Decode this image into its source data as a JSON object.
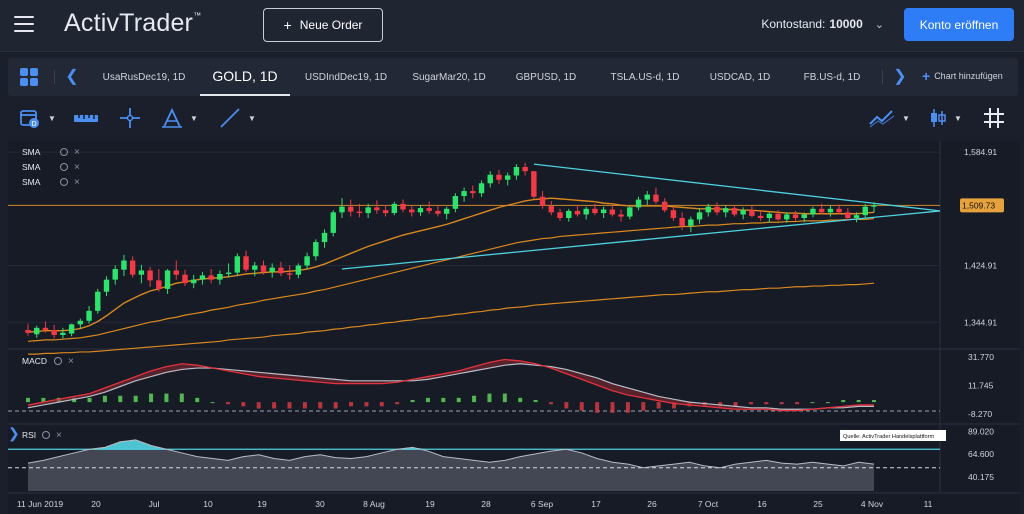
{
  "app": {
    "logo": "ActivTrader",
    "logo_tm": "™",
    "new_order_label": "Neue Order",
    "account_label": "Kontostand:",
    "account_value": "10000",
    "open_account_label": "Konto eröffnen",
    "accent": "#2e7cf6"
  },
  "tabs": {
    "items": [
      {
        "label": "UsaRusDec19, 1D",
        "active": false
      },
      {
        "label": "GOLD, 1D",
        "active": true
      },
      {
        "label": "USDIndDec19, 1D",
        "active": false
      },
      {
        "label": "SugarMar20, 1D",
        "active": false
      },
      {
        "label": "GBPUSD, 1D",
        "active": false
      },
      {
        "label": "TSLA.US-d, 1D",
        "active": false
      },
      {
        "label": "USDCAD, 1D",
        "active": false
      },
      {
        "label": "FB.US-d, 1D",
        "active": false
      }
    ],
    "add_chart_label": "Chart hinzufügen"
  },
  "toolbar": {
    "icons": [
      "calendar-icon",
      "ruler-icon",
      "crosshair-icon",
      "fibonacci-icon",
      "trendline-icon",
      "indicators-icon",
      "candlestick-icon",
      "grid-hash-icon"
    ]
  },
  "chart": {
    "legend": [
      "SMA",
      "SMA",
      "SMA"
    ],
    "price_labels": [
      "1,584.91",
      "1,509.73",
      "1,424.91",
      "1,344.91"
    ],
    "current_price": "1,509.73",
    "macd_label": "MACD",
    "macd_labels": [
      "31.770",
      "11.745",
      "-8.270"
    ],
    "rsi_label": "RSI",
    "rsi_labels": [
      "89.020",
      "64.600",
      "40.175"
    ],
    "source_note": "Quelle: ActivTrader Handelsplattform",
    "x_labels": [
      "11 Jun 2019",
      "20",
      "Jul",
      "10",
      "19",
      "30",
      "8 Aug",
      "19",
      "28",
      "6 Sep",
      "17",
      "26",
      "7 Oct",
      "16",
      "25",
      "4 Nov",
      "11"
    ],
    "colors": {
      "up": "#2ee36b",
      "down": "#f23a46",
      "sma": "#d9881f",
      "triangle": "#4fd1e0",
      "rsi": "#4fd1e0"
    }
  },
  "chart_data": {
    "type": "candlestick",
    "symbol": "GOLD, 1D",
    "price_ticks": [
      1584.91,
      1509.73,
      1424.91,
      1344.91
    ],
    "current_price": 1509.73,
    "candles": [
      {
        "o": 1334,
        "h": 1343,
        "l": 1326,
        "c": 1330
      },
      {
        "o": 1328,
        "h": 1340,
        "l": 1323,
        "c": 1337
      },
      {
        "o": 1337,
        "h": 1346,
        "l": 1330,
        "c": 1334
      },
      {
        "o": 1334,
        "h": 1341,
        "l": 1322,
        "c": 1327
      },
      {
        "o": 1327,
        "h": 1337,
        "l": 1322,
        "c": 1330
      },
      {
        "o": 1329,
        "h": 1343,
        "l": 1325,
        "c": 1342
      },
      {
        "o": 1342,
        "h": 1350,
        "l": 1336,
        "c": 1347
      },
      {
        "o": 1347,
        "h": 1368,
        "l": 1343,
        "c": 1361
      },
      {
        "o": 1361,
        "h": 1392,
        "l": 1357,
        "c": 1388
      },
      {
        "o": 1388,
        "h": 1410,
        "l": 1382,
        "c": 1405
      },
      {
        "o": 1405,
        "h": 1425,
        "l": 1398,
        "c": 1420
      },
      {
        "o": 1419,
        "h": 1440,
        "l": 1410,
        "c": 1432
      },
      {
        "o": 1432,
        "h": 1438,
        "l": 1408,
        "c": 1412
      },
      {
        "o": 1412,
        "h": 1426,
        "l": 1400,
        "c": 1418
      },
      {
        "o": 1418,
        "h": 1423,
        "l": 1395,
        "c": 1404
      },
      {
        "o": 1404,
        "h": 1420,
        "l": 1388,
        "c": 1392
      },
      {
        "o": 1392,
        "h": 1420,
        "l": 1385,
        "c": 1418
      },
      {
        "o": 1418,
        "h": 1432,
        "l": 1405,
        "c": 1412
      },
      {
        "o": 1412,
        "h": 1419,
        "l": 1396,
        "c": 1400
      },
      {
        "o": 1400,
        "h": 1412,
        "l": 1393,
        "c": 1405
      },
      {
        "o": 1405,
        "h": 1416,
        "l": 1398,
        "c": 1411
      },
      {
        "o": 1411,
        "h": 1420,
        "l": 1400,
        "c": 1405
      },
      {
        "o": 1405,
        "h": 1418,
        "l": 1398,
        "c": 1413
      },
      {
        "o": 1413,
        "h": 1428,
        "l": 1408,
        "c": 1415
      },
      {
        "o": 1415,
        "h": 1442,
        "l": 1410,
        "c": 1438
      },
      {
        "o": 1438,
        "h": 1446,
        "l": 1416,
        "c": 1419
      },
      {
        "o": 1419,
        "h": 1430,
        "l": 1410,
        "c": 1425
      },
      {
        "o": 1425,
        "h": 1432,
        "l": 1412,
        "c": 1416
      },
      {
        "o": 1416,
        "h": 1428,
        "l": 1408,
        "c": 1422
      },
      {
        "o": 1422,
        "h": 1430,
        "l": 1410,
        "c": 1414
      },
      {
        "o": 1414,
        "h": 1425,
        "l": 1405,
        "c": 1412
      },
      {
        "o": 1412,
        "h": 1428,
        "l": 1407,
        "c": 1425
      },
      {
        "o": 1425,
        "h": 1443,
        "l": 1420,
        "c": 1438
      },
      {
        "o": 1438,
        "h": 1462,
        "l": 1432,
        "c": 1458
      },
      {
        "o": 1458,
        "h": 1476,
        "l": 1450,
        "c": 1471
      },
      {
        "o": 1471,
        "h": 1503,
        "l": 1466,
        "c": 1500
      },
      {
        "o": 1500,
        "h": 1520,
        "l": 1492,
        "c": 1508
      },
      {
        "o": 1508,
        "h": 1518,
        "l": 1494,
        "c": 1501
      },
      {
        "o": 1501,
        "h": 1512,
        "l": 1493,
        "c": 1499
      },
      {
        "o": 1499,
        "h": 1512,
        "l": 1492,
        "c": 1507
      },
      {
        "o": 1507,
        "h": 1517,
        "l": 1498,
        "c": 1503
      },
      {
        "o": 1503,
        "h": 1510,
        "l": 1494,
        "c": 1499
      },
      {
        "o": 1499,
        "h": 1515,
        "l": 1496,
        "c": 1512
      },
      {
        "o": 1512,
        "h": 1518,
        "l": 1500,
        "c": 1504
      },
      {
        "o": 1504,
        "h": 1510,
        "l": 1494,
        "c": 1500
      },
      {
        "o": 1500,
        "h": 1510,
        "l": 1495,
        "c": 1506
      },
      {
        "o": 1506,
        "h": 1515,
        "l": 1498,
        "c": 1502
      },
      {
        "o": 1502,
        "h": 1510,
        "l": 1494,
        "c": 1498
      },
      {
        "o": 1498,
        "h": 1508,
        "l": 1490,
        "c": 1505
      },
      {
        "o": 1505,
        "h": 1527,
        "l": 1500,
        "c": 1523
      },
      {
        "o": 1523,
        "h": 1535,
        "l": 1515,
        "c": 1530
      },
      {
        "o": 1530,
        "h": 1538,
        "l": 1520,
        "c": 1527
      },
      {
        "o": 1527,
        "h": 1545,
        "l": 1522,
        "c": 1541
      },
      {
        "o": 1541,
        "h": 1558,
        "l": 1535,
        "c": 1553
      },
      {
        "o": 1553,
        "h": 1560,
        "l": 1540,
        "c": 1546
      },
      {
        "o": 1546,
        "h": 1556,
        "l": 1538,
        "c": 1552
      },
      {
        "o": 1552,
        "h": 1568,
        "l": 1546,
        "c": 1564
      },
      {
        "o": 1564,
        "h": 1570,
        "l": 1552,
        "c": 1558
      },
      {
        "o": 1558,
        "h": 1558,
        "l": 1518,
        "c": 1522
      },
      {
        "o": 1522,
        "h": 1530,
        "l": 1505,
        "c": 1509
      },
      {
        "o": 1509,
        "h": 1516,
        "l": 1496,
        "c": 1500
      },
      {
        "o": 1500,
        "h": 1505,
        "l": 1488,
        "c": 1492
      },
      {
        "o": 1492,
        "h": 1505,
        "l": 1487,
        "c": 1502
      },
      {
        "o": 1502,
        "h": 1510,
        "l": 1494,
        "c": 1497
      },
      {
        "o": 1497,
        "h": 1508,
        "l": 1490,
        "c": 1505
      },
      {
        "o": 1505,
        "h": 1512,
        "l": 1496,
        "c": 1499
      },
      {
        "o": 1499,
        "h": 1508,
        "l": 1492,
        "c": 1504
      },
      {
        "o": 1504,
        "h": 1510,
        "l": 1494,
        "c": 1497
      },
      {
        "o": 1497,
        "h": 1504,
        "l": 1487,
        "c": 1494
      },
      {
        "o": 1494,
        "h": 1510,
        "l": 1490,
        "c": 1507
      },
      {
        "o": 1507,
        "h": 1522,
        "l": 1503,
        "c": 1518
      },
      {
        "o": 1518,
        "h": 1530,
        "l": 1510,
        "c": 1525
      },
      {
        "o": 1525,
        "h": 1535,
        "l": 1512,
        "c": 1515
      },
      {
        "o": 1515,
        "h": 1520,
        "l": 1500,
        "c": 1503
      },
      {
        "o": 1503,
        "h": 1508,
        "l": 1488,
        "c": 1492
      },
      {
        "o": 1492,
        "h": 1500,
        "l": 1475,
        "c": 1481
      },
      {
        "o": 1481,
        "h": 1494,
        "l": 1472,
        "c": 1490
      },
      {
        "o": 1490,
        "h": 1506,
        "l": 1484,
        "c": 1500
      },
      {
        "o": 1500,
        "h": 1512,
        "l": 1494,
        "c": 1508
      },
      {
        "o": 1508,
        "h": 1514,
        "l": 1496,
        "c": 1500
      },
      {
        "o": 1500,
        "h": 1510,
        "l": 1493,
        "c": 1506
      },
      {
        "o": 1506,
        "h": 1510,
        "l": 1494,
        "c": 1497
      },
      {
        "o": 1497,
        "h": 1507,
        "l": 1490,
        "c": 1503
      },
      {
        "o": 1503,
        "h": 1509,
        "l": 1493,
        "c": 1495
      },
      {
        "o": 1495,
        "h": 1502,
        "l": 1488,
        "c": 1492
      },
      {
        "o": 1492,
        "h": 1500,
        "l": 1486,
        "c": 1498
      },
      {
        "o": 1498,
        "h": 1503,
        "l": 1488,
        "c": 1490
      },
      {
        "o": 1490,
        "h": 1500,
        "l": 1485,
        "c": 1497
      },
      {
        "o": 1497,
        "h": 1502,
        "l": 1488,
        "c": 1492
      },
      {
        "o": 1492,
        "h": 1500,
        "l": 1486,
        "c": 1497
      },
      {
        "o": 1497,
        "h": 1508,
        "l": 1493,
        "c": 1505
      },
      {
        "o": 1505,
        "h": 1512,
        "l": 1497,
        "c": 1500
      },
      {
        "o": 1500,
        "h": 1510,
        "l": 1494,
        "c": 1505
      },
      {
        "o": 1505,
        "h": 1511,
        "l": 1497,
        "c": 1500
      },
      {
        "o": 1500,
        "h": 1506,
        "l": 1488,
        "c": 1492
      },
      {
        "o": 1492,
        "h": 1500,
        "l": 1486,
        "c": 1496
      },
      {
        "o": 1496,
        "h": 1512,
        "l": 1491,
        "c": 1508
      },
      {
        "o": 1508,
        "h": 1514,
        "l": 1500,
        "c": 1510
      }
    ],
    "sma_fast_label": "SMA",
    "sma_fast": [
      1331,
      1332,
      1333,
      1333,
      1333,
      1334,
      1336,
      1340,
      1346,
      1354,
      1363,
      1372,
      1378,
      1384,
      1389,
      1392,
      1396,
      1400,
      1402,
      1404,
      1406,
      1407,
      1408,
      1409,
      1411,
      1413,
      1414,
      1415,
      1416,
      1416,
      1417,
      1418,
      1420,
      1423,
      1427,
      1432,
      1437,
      1442,
      1447,
      1452,
      1456,
      1460,
      1464,
      1468,
      1471,
      1474,
      1477,
      1480,
      1483,
      1487,
      1491,
      1495,
      1499,
      1503,
      1507,
      1510,
      1513,
      1516,
      1518,
      1519,
      1520,
      1519,
      1518,
      1517,
      1516,
      1515,
      1513,
      1512,
      1510,
      1509,
      1509,
      1509,
      1509,
      1509,
      1508,
      1507,
      1506,
      1505,
      1505,
      1505,
      1504,
      1504,
      1503,
      1503,
      1502,
      1501,
      1500,
      1499,
      1499,
      1498,
      1498,
      1498,
      1498,
      1498,
      1498,
      1498,
      1499,
      1500
    ],
    "sma_mid_label": "SMA",
    "sma_mid": [
      1318,
      1319,
      1320,
      1320,
      1321,
      1322,
      1323,
      1325,
      1327,
      1330,
      1333,
      1336,
      1339,
      1342,
      1345,
      1347,
      1350,
      1352,
      1355,
      1357,
      1359,
      1362,
      1364,
      1366,
      1369,
      1371,
      1373,
      1376,
      1378,
      1380,
      1382,
      1384,
      1386,
      1389,
      1391,
      1394,
      1397,
      1400,
      1403,
      1406,
      1409,
      1412,
      1415,
      1418,
      1421,
      1424,
      1427,
      1430,
      1433,
      1436,
      1439,
      1442,
      1445,
      1448,
      1451,
      1454,
      1457,
      1459,
      1461,
      1463,
      1464,
      1466,
      1467,
      1468,
      1469,
      1470,
      1471,
      1472,
      1473,
      1474,
      1475,
      1476,
      1477,
      1478,
      1479,
      1480,
      1480,
      1481,
      1482,
      1482,
      1483,
      1484,
      1484,
      1485,
      1485,
      1486,
      1486,
      1487,
      1487,
      1488,
      1488,
      1488,
      1489,
      1489,
      1490,
      1490,
      1490,
      1491
    ],
    "sma_slow_label": "SMA",
    "sma_slow": [
      1300,
      1300,
      1301,
      1301,
      1302,
      1302,
      1303,
      1303,
      1304,
      1305,
      1306,
      1307,
      1308,
      1309,
      1310,
      1311,
      1312,
      1313,
      1314,
      1315,
      1316,
      1317,
      1318,
      1320,
      1321,
      1322,
      1323,
      1324,
      1326,
      1327,
      1328,
      1329,
      1331,
      1332,
      1333,
      1335,
      1336,
      1338,
      1339,
      1341,
      1342,
      1344,
      1345,
      1347,
      1348,
      1350,
      1351,
      1353,
      1354,
      1356,
      1357,
      1359,
      1360,
      1362,
      1363,
      1365,
      1366,
      1367,
      1369,
      1370,
      1371,
      1372,
      1373,
      1374,
      1375,
      1376,
      1377,
      1378,
      1379,
      1380,
      1381,
      1382,
      1383,
      1384,
      1384,
      1385,
      1386,
      1387,
      1388,
      1388,
      1389,
      1390,
      1391,
      1391,
      1392,
      1393,
      1393,
      1394,
      1395,
      1395,
      1396,
      1396,
      1397,
      1397,
      1398,
      1398,
      1399,
      1400
    ],
    "flat_line": 1509.73,
    "triangle_upper": [
      {
        "i": 58,
        "p": 1568
      },
      {
        "i": 107,
        "p": 1502
      }
    ],
    "triangle_lower": [
      {
        "i": 36,
        "p": 1420
      },
      {
        "i": 107,
        "p": 1502
      }
    ],
    "macd": {
      "ticks": [
        31.77,
        11.745,
        -8.27
      ],
      "zero_line": 0,
      "macd_line": [
        -2,
        0,
        2,
        4,
        6,
        10,
        14,
        18,
        22,
        25,
        27,
        26,
        24,
        22,
        20,
        18,
        17,
        16,
        15,
        14,
        13,
        13,
        13,
        13,
        14,
        16,
        18,
        20,
        22,
        25,
        28,
        30,
        29,
        27,
        24,
        20,
        16,
        12,
        8,
        5,
        3,
        1,
        -1,
        -2,
        -3,
        -4,
        -5,
        -5,
        -5,
        -6,
        -6,
        -5,
        -4,
        -3,
        -2,
        -2
      ],
      "signal_line": [
        -4,
        -2,
        0,
        2,
        4,
        7,
        11,
        15,
        18,
        21,
        23,
        24,
        24,
        23,
        22,
        21,
        20,
        19,
        18,
        17,
        16,
        15,
        15,
        15,
        15,
        15,
        16,
        18,
        20,
        22,
        24,
        26,
        27,
        26,
        25,
        23,
        20,
        17,
        13,
        10,
        7,
        4,
        2,
        0,
        -1,
        -2,
        -3,
        -4,
        -4,
        -5,
        -5,
        -5,
        -4,
        -4,
        -3,
        -3
      ]
    },
    "rsi": {
      "ticks": [
        89.02,
        64.6,
        40.175
      ],
      "upper_band": 70,
      "lower_band": 30,
      "values": [
        55,
        58,
        62,
        66,
        70,
        72,
        78,
        80,
        74,
        70,
        66,
        62,
        60,
        58,
        62,
        64,
        60,
        58,
        62,
        64,
        61,
        60,
        62,
        66,
        70,
        72,
        68,
        62,
        60,
        58,
        56,
        58,
        62,
        65,
        68,
        70,
        66,
        60,
        56,
        54,
        50,
        52,
        54,
        56,
        52,
        50,
        54,
        56,
        58,
        55,
        54,
        56,
        54,
        52,
        56,
        54
      ]
    },
    "x_ticks": [
      "11 Jun 2019",
      "20",
      "Jul",
      "10",
      "19",
      "30",
      "8 Aug",
      "19",
      "28",
      "6 Sep",
      "17",
      "26",
      "7 Oct",
      "16",
      "25",
      "4 Nov",
      "11"
    ]
  }
}
